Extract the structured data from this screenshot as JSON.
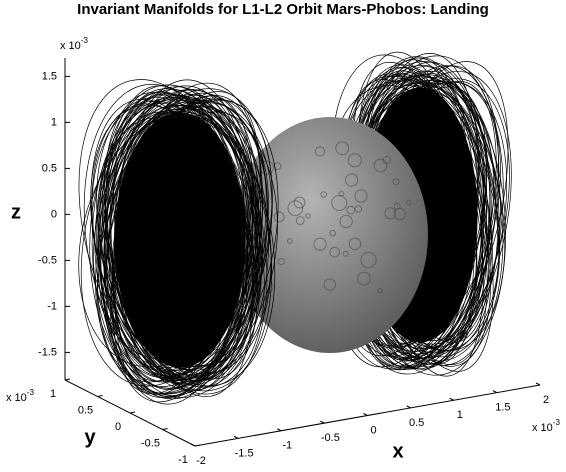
{
  "chart_data": {
    "type": "line3d",
    "title": "Invariant Manifolds for L1-L2 Orbit Mars-Phobos: Landing",
    "xlabel": "x",
    "ylabel": "y",
    "zlabel": "z",
    "xlim": [
      -2,
      2
    ],
    "ylim": [
      -1,
      1
    ],
    "zlim": [
      -1.8,
      1.7
    ],
    "xticks": [
      -2,
      -1.5,
      -1,
      -0.5,
      0,
      0.5,
      1,
      1.5,
      2
    ],
    "yticks": [
      -1,
      -0.5,
      0,
      0.5,
      1
    ],
    "zticks": [
      -1.5,
      -1,
      -0.5,
      0,
      0.5,
      1,
      1.5
    ],
    "x_exponent": {
      "base": "x 10",
      "power": "-3"
    },
    "y_exponent": {
      "base": "x 10",
      "power": "-3"
    },
    "z_exponent": {
      "base": "x 10",
      "power": "-3"
    },
    "color": "#000000"
  }
}
